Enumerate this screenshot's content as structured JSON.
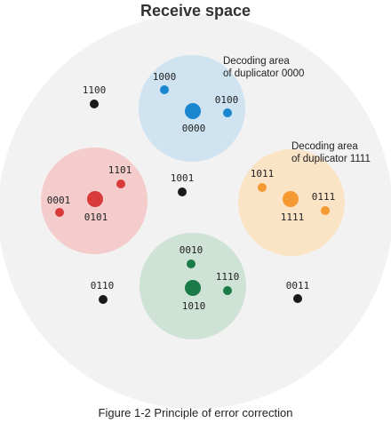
{
  "diagram": {
    "title": "Receive space",
    "caption": "Figure 1-2 Principle of error correction",
    "colors": {
      "space": "#f2f2f2",
      "black_point": "#1a1a1a",
      "blue_area": "#cfe3f1",
      "blue_point": "#1a86cf",
      "red_area": "#f4cccc",
      "red_point": "#d83a3a",
      "orange_area": "#fbe3c6",
      "orange_point": "#f59a33",
      "green_area": "#cfe2d6",
      "green_point": "#1a7a48"
    },
    "area_labels": {
      "blue": [
        "Decoding area",
        "of duplicator 0000"
      ],
      "orange": [
        "Decoding area",
        "of duplicator 1111"
      ]
    },
    "codewords": {
      "blue_center": "0000",
      "blue_a": "1000",
      "blue_b": "0100",
      "red_center": "0101",
      "red_a": "1101",
      "red_b": "0001",
      "orange_center": "1111",
      "orange_a": "1011",
      "orange_b": "0111",
      "green_center": "1010",
      "green_a": "0010",
      "green_b": "1110",
      "free_a": "1100",
      "free_b": "1001",
      "free_c": "0110",
      "free_d": "0011"
    }
  }
}
